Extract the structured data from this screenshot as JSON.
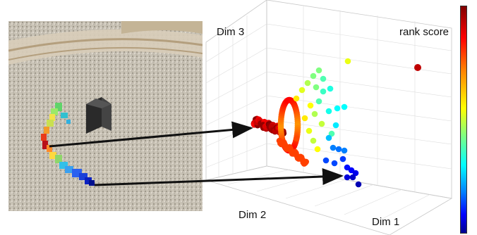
{
  "labels": {
    "dim3": "Dim 3",
    "rank_score": "rank score",
    "dim2": "Dim 2",
    "dim1": "Dim 1"
  },
  "chart_data": {
    "type": "scatter",
    "projection": "3d",
    "xlabel": "Dim 1",
    "ylabel": "Dim 2",
    "zlabel": "Dim 3",
    "colorbar_label": "rank score",
    "grid": true,
    "colormap": "jet",
    "color_low": "#00008f",
    "color_high": "#7f0000",
    "description_of_marks": "dense spiral cluster of red/orange points near origin, sparser cyan/blue points spreading toward Dim 1 axis, one isolated dark-red point upper right",
    "arrows": [
      {
        "from": "red crowd region in photo",
        "to": "dense red cluster in plot"
      },
      {
        "from": "blue crowd region in photo",
        "to": "blue points near Dim 1 axis"
      }
    ]
  }
}
